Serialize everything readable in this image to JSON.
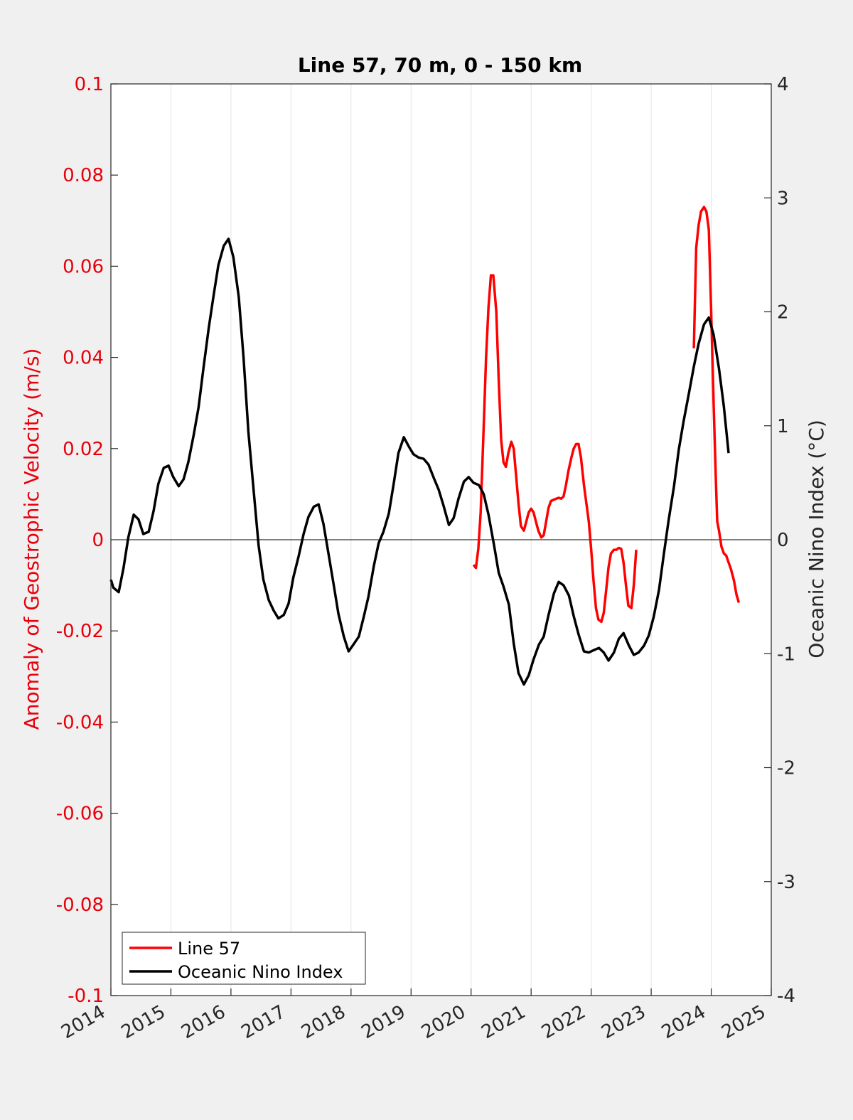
{
  "chart_data": {
    "type": "line",
    "title": "Line 57, 70 m, 0 - 150 km",
    "xlabel": "",
    "ylabel_left": "Anomaly of Geostrophic Velocity (m/s)",
    "ylabel_right": "Oceanic Nino Index (°C)",
    "xlim": [
      2014,
      2025
    ],
    "ylim_left": [
      -0.1,
      0.1
    ],
    "ylim_right": [
      -4,
      4
    ],
    "x_ticks": [
      2014,
      2015,
      2016,
      2017,
      2018,
      2019,
      2020,
      2021,
      2022,
      2023,
      2024,
      2025
    ],
    "x_tick_labels": [
      "2014",
      "2015",
      "2016",
      "2017",
      "2018",
      "2019",
      "2020",
      "2021",
      "2022",
      "2023",
      "2024",
      "2025"
    ],
    "y_left_ticks": [
      -0.1,
      -0.08,
      -0.06,
      -0.04,
      -0.02,
      0,
      0.02,
      0.04,
      0.06,
      0.08,
      0.1
    ],
    "y_left_tick_labels": [
      "-0.1",
      "-0.08",
      "-0.06",
      "-0.04",
      "-0.02",
      "0",
      "0.02",
      "0.04",
      "0.06",
      "0.08",
      "0.1"
    ],
    "y_right_ticks": [
      -4,
      -3,
      -2,
      -1,
      0,
      1,
      2,
      3,
      4
    ],
    "y_right_tick_labels": [
      "-4",
      "-3",
      "-2",
      "-1",
      "0",
      "1",
      "2",
      "3",
      "4"
    ],
    "grid": "vertical",
    "legend_position": "bottom-left",
    "colors": {
      "line57": "#ff0000",
      "oni": "#000000",
      "left_axis": "#e8000b",
      "background": "#f0f0f0"
    },
    "series": [
      {
        "name": "Line 57",
        "axis": "left",
        "segments": [
          [
            [
              2020.04,
              -0.0055
            ],
            [
              2020.08,
              -0.0062
            ],
            [
              2020.12,
              -0.002
            ],
            [
              2020.16,
              0.006
            ],
            [
              2020.21,
              0.025
            ],
            [
              2020.25,
              0.04
            ],
            [
              2020.29,
              0.051
            ],
            [
              2020.33,
              0.058
            ],
            [
              2020.37,
              0.058
            ],
            [
              2020.42,
              0.05
            ],
            [
              2020.46,
              0.035
            ],
            [
              2020.5,
              0.022
            ],
            [
              2020.54,
              0.017
            ],
            [
              2020.58,
              0.016
            ],
            [
              2020.62,
              0.019
            ],
            [
              2020.67,
              0.0215
            ],
            [
              2020.71,
              0.02
            ],
            [
              2020.75,
              0.014
            ],
            [
              2020.79,
              0.008
            ],
            [
              2020.83,
              0.003
            ],
            [
              2020.88,
              0.002
            ],
            [
              2020.92,
              0.004
            ],
            [
              2020.96,
              0.006
            ],
            [
              2021.0,
              0.0068
            ],
            [
              2021.04,
              0.006
            ],
            [
              2021.08,
              0.004
            ],
            [
              2021.12,
              0.002
            ],
            [
              2021.17,
              0.0005
            ],
            [
              2021.21,
              0.001
            ],
            [
              2021.25,
              0.004
            ],
            [
              2021.29,
              0.007
            ],
            [
              2021.33,
              0.0085
            ],
            [
              2021.38,
              0.0088
            ],
            [
              2021.42,
              0.009
            ],
            [
              2021.46,
              0.0092
            ],
            [
              2021.5,
              0.009
            ],
            [
              2021.54,
              0.0095
            ],
            [
              2021.58,
              0.012
            ],
            [
              2021.62,
              0.015
            ],
            [
              2021.67,
              0.018
            ],
            [
              2021.71,
              0.02
            ],
            [
              2021.75,
              0.021
            ],
            [
              2021.79,
              0.021
            ],
            [
              2021.83,
              0.018
            ],
            [
              2021.88,
              0.012
            ],
            [
              2021.92,
              0.008
            ],
            [
              2021.96,
              0.004
            ],
            [
              2022.0,
              -0.002
            ],
            [
              2022.04,
              -0.009
            ],
            [
              2022.08,
              -0.015
            ],
            [
              2022.12,
              -0.0175
            ],
            [
              2022.17,
              -0.018
            ],
            [
              2022.21,
              -0.016
            ],
            [
              2022.25,
              -0.011
            ],
            [
              2022.29,
              -0.006
            ],
            [
              2022.33,
              -0.003
            ],
            [
              2022.38,
              -0.0022
            ],
            [
              2022.42,
              -0.0022
            ],
            [
              2022.46,
              -0.0018
            ],
            [
              2022.5,
              -0.002
            ],
            [
              2022.54,
              -0.005
            ],
            [
              2022.58,
              -0.01
            ],
            [
              2022.62,
              -0.0145
            ],
            [
              2022.67,
              -0.015
            ],
            [
              2022.71,
              -0.01
            ],
            [
              2022.75,
              -0.0022
            ]
          ],
          [
            [
              2023.71,
              0.042
            ],
            [
              2023.75,
              0.064
            ],
            [
              2023.79,
              0.069
            ],
            [
              2023.83,
              0.072
            ],
            [
              2023.88,
              0.073
            ],
            [
              2023.92,
              0.072
            ],
            [
              2023.96,
              0.068
            ],
            [
              2024.0,
              0.05
            ],
            [
              2024.04,
              0.03
            ],
            [
              2024.08,
              0.012
            ],
            [
              2024.1,
              0.004
            ],
            [
              2024.13,
              0.002
            ],
            [
              2024.17,
              -0.0015
            ],
            [
              2024.21,
              -0.003
            ],
            [
              2024.25,
              -0.0035
            ],
            [
              2024.29,
              -0.005
            ],
            [
              2024.33,
              -0.0065
            ],
            [
              2024.38,
              -0.009
            ],
            [
              2024.42,
              -0.012
            ],
            [
              2024.46,
              -0.0138
            ]
          ]
        ]
      },
      {
        "name": "Oceanic Nino Index",
        "axis": "right",
        "points": [
          [
            2014.0,
            -0.35
          ],
          [
            2014.04,
            -0.42
          ],
          [
            2014.13,
            -0.46
          ],
          [
            2014.21,
            -0.25
          ],
          [
            2014.29,
            0.02
          ],
          [
            2014.38,
            0.22
          ],
          [
            2014.46,
            0.18
          ],
          [
            2014.54,
            0.05
          ],
          [
            2014.63,
            0.07
          ],
          [
            2014.71,
            0.25
          ],
          [
            2014.79,
            0.49
          ],
          [
            2014.88,
            0.63
          ],
          [
            2014.96,
            0.65
          ],
          [
            2015.04,
            0.55
          ],
          [
            2015.13,
            0.47
          ],
          [
            2015.21,
            0.53
          ],
          [
            2015.29,
            0.68
          ],
          [
            2015.38,
            0.92
          ],
          [
            2015.46,
            1.16
          ],
          [
            2015.54,
            1.5
          ],
          [
            2015.63,
            1.86
          ],
          [
            2015.71,
            2.14
          ],
          [
            2015.79,
            2.41
          ],
          [
            2015.88,
            2.58
          ],
          [
            2015.96,
            2.64
          ],
          [
            2016.04,
            2.48
          ],
          [
            2016.13,
            2.13
          ],
          [
            2016.21,
            1.6
          ],
          [
            2016.29,
            0.95
          ],
          [
            2016.38,
            0.42
          ],
          [
            2016.46,
            -0.05
          ],
          [
            2016.54,
            -0.35
          ],
          [
            2016.63,
            -0.53
          ],
          [
            2016.71,
            -0.62
          ],
          [
            2016.79,
            -0.69
          ],
          [
            2016.88,
            -0.66
          ],
          [
            2016.96,
            -0.56
          ],
          [
            2017.04,
            -0.33
          ],
          [
            2017.13,
            -0.14
          ],
          [
            2017.21,
            0.05
          ],
          [
            2017.29,
            0.2
          ],
          [
            2017.38,
            0.29
          ],
          [
            2017.46,
            0.31
          ],
          [
            2017.54,
            0.14
          ],
          [
            2017.63,
            -0.14
          ],
          [
            2017.71,
            -0.39
          ],
          [
            2017.79,
            -0.65
          ],
          [
            2017.88,
            -0.85
          ],
          [
            2017.96,
            -0.98
          ],
          [
            2018.04,
            -0.92
          ],
          [
            2018.13,
            -0.85
          ],
          [
            2018.21,
            -0.68
          ],
          [
            2018.29,
            -0.5
          ],
          [
            2018.38,
            -0.23
          ],
          [
            2018.46,
            -0.03
          ],
          [
            2018.54,
            0.07
          ],
          [
            2018.63,
            0.23
          ],
          [
            2018.71,
            0.49
          ],
          [
            2018.79,
            0.76
          ],
          [
            2018.88,
            0.9
          ],
          [
            2018.96,
            0.82
          ],
          [
            2019.04,
            0.75
          ],
          [
            2019.13,
            0.72
          ],
          [
            2019.21,
            0.71
          ],
          [
            2019.29,
            0.66
          ],
          [
            2019.38,
            0.54
          ],
          [
            2019.46,
            0.44
          ],
          [
            2019.54,
            0.3
          ],
          [
            2019.63,
            0.13
          ],
          [
            2019.71,
            0.19
          ],
          [
            2019.79,
            0.36
          ],
          [
            2019.88,
            0.51
          ],
          [
            2019.96,
            0.55
          ],
          [
            2020.04,
            0.5
          ],
          [
            2020.13,
            0.48
          ],
          [
            2020.21,
            0.4
          ],
          [
            2020.29,
            0.22
          ],
          [
            2020.38,
            -0.04
          ],
          [
            2020.46,
            -0.29
          ],
          [
            2020.54,
            -0.41
          ],
          [
            2020.63,
            -0.57
          ],
          [
            2020.71,
            -0.91
          ],
          [
            2020.79,
            -1.17
          ],
          [
            2020.88,
            -1.27
          ],
          [
            2020.96,
            -1.19
          ],
          [
            2021.04,
            -1.05
          ],
          [
            2021.13,
            -0.92
          ],
          [
            2021.21,
            -0.85
          ],
          [
            2021.29,
            -0.66
          ],
          [
            2021.38,
            -0.47
          ],
          [
            2021.46,
            -0.37
          ],
          [
            2021.54,
            -0.4
          ],
          [
            2021.63,
            -0.49
          ],
          [
            2021.71,
            -0.67
          ],
          [
            2021.79,
            -0.83
          ],
          [
            2021.88,
            -0.98
          ],
          [
            2021.96,
            -0.99
          ],
          [
            2022.04,
            -0.97
          ],
          [
            2022.13,
            -0.95
          ],
          [
            2022.21,
            -0.99
          ],
          [
            2022.29,
            -1.06
          ],
          [
            2022.38,
            -0.99
          ],
          [
            2022.46,
            -0.87
          ],
          [
            2022.54,
            -0.82
          ],
          [
            2022.63,
            -0.93
          ],
          [
            2022.71,
            -1.01
          ],
          [
            2022.79,
            -0.99
          ],
          [
            2022.88,
            -0.93
          ],
          [
            2022.96,
            -0.84
          ],
          [
            2023.04,
            -0.68
          ],
          [
            2023.13,
            -0.44
          ],
          [
            2023.21,
            -0.13
          ],
          [
            2023.29,
            0.17
          ],
          [
            2023.38,
            0.47
          ],
          [
            2023.46,
            0.79
          ],
          [
            2023.54,
            1.04
          ],
          [
            2023.63,
            1.29
          ],
          [
            2023.71,
            1.52
          ],
          [
            2023.79,
            1.72
          ],
          [
            2023.88,
            1.89
          ],
          [
            2023.96,
            1.95
          ],
          [
            2024.04,
            1.8
          ],
          [
            2024.13,
            1.5
          ],
          [
            2024.21,
            1.17
          ],
          [
            2024.29,
            0.76
          ]
        ]
      }
    ]
  }
}
